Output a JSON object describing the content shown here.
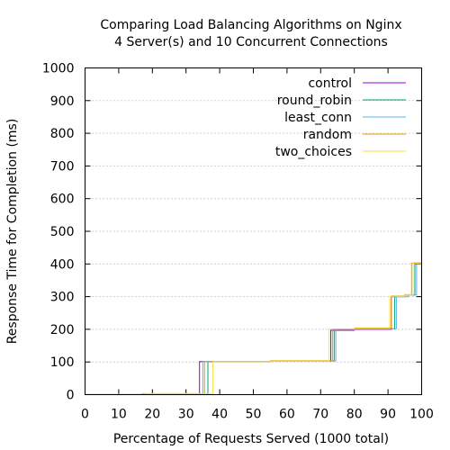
{
  "chart_data": {
    "type": "line",
    "title": "Comparing Load Balancing Algorithms on Nginx",
    "subtitle": "4 Server(s) and 10 Concurrent Connections",
    "xlabel": "Percentage of Requests Served (1000 total)",
    "ylabel": "Response Time for Completion (ms)",
    "xlim": [
      0,
      100
    ],
    "ylim": [
      0,
      1000
    ],
    "xticks": [
      "0",
      "10",
      "20",
      "30",
      "40",
      "50",
      "60",
      "70",
      "80",
      "90",
      "100"
    ],
    "yticks": [
      "0",
      "100",
      "200",
      "300",
      "400",
      "500",
      "600",
      "700",
      "800",
      "900",
      "1000"
    ],
    "grid": "horizontal dotted",
    "legend_position": "top-right",
    "series": [
      {
        "name": "control",
        "color": "#9400d3",
        "points": [
          [
            0,
            1
          ],
          [
            34,
            1
          ],
          [
            34,
            101
          ],
          [
            55,
            101
          ],
          [
            55,
            103
          ],
          [
            73,
            103
          ],
          [
            73,
            197
          ],
          [
            80,
            197
          ],
          [
            80,
            200
          ],
          [
            91,
            200
          ],
          [
            91,
            300
          ],
          [
            95,
            300
          ],
          [
            95,
            305
          ],
          [
            98,
            305
          ],
          [
            98,
            400
          ],
          [
            100,
            400
          ],
          [
            100,
            1000
          ]
        ]
      },
      {
        "name": "round_robin",
        "color": "#009e73",
        "points": [
          [
            0,
            1
          ],
          [
            36.5,
            1
          ],
          [
            36.5,
            101
          ],
          [
            55,
            101
          ],
          [
            55,
            103
          ],
          [
            74,
            103
          ],
          [
            74,
            200
          ],
          [
            80,
            200
          ],
          [
            80,
            202
          ],
          [
            92,
            202
          ],
          [
            92,
            300
          ],
          [
            95,
            300
          ],
          [
            95,
            305
          ],
          [
            98,
            305
          ],
          [
            98,
            400
          ],
          [
            100,
            400
          ],
          [
            100,
            1000
          ]
        ]
      },
      {
        "name": "least_conn",
        "color": "#56b4e9",
        "points": [
          [
            0,
            1
          ],
          [
            35,
            1
          ],
          [
            35,
            101
          ],
          [
            55,
            101
          ],
          [
            55,
            103
          ],
          [
            74.5,
            103
          ],
          [
            74.5,
            200
          ],
          [
            80,
            200
          ],
          [
            80,
            202
          ],
          [
            92.5,
            202
          ],
          [
            92.5,
            300
          ],
          [
            96,
            300
          ],
          [
            96,
            305
          ],
          [
            98.5,
            305
          ],
          [
            98.5,
            400
          ],
          [
            100,
            400
          ],
          [
            100,
            1000
          ]
        ]
      },
      {
        "name": "random",
        "color": "#e69f00",
        "points": [
          [
            0,
            1
          ],
          [
            17,
            1
          ],
          [
            17,
            3
          ],
          [
            35.5,
            3
          ],
          [
            35.5,
            101
          ],
          [
            55,
            101
          ],
          [
            55,
            104
          ],
          [
            73.5,
            104
          ],
          [
            73.5,
            201
          ],
          [
            80,
            201
          ],
          [
            80,
            204
          ],
          [
            91,
            204
          ],
          [
            91,
            302
          ],
          [
            95,
            302
          ],
          [
            95,
            306
          ],
          [
            97,
            306
          ],
          [
            97,
            402
          ],
          [
            100,
            402
          ],
          [
            100,
            1000
          ]
        ]
      },
      {
        "name": "two_choices",
        "color": "#f0e442",
        "points": [
          [
            0,
            1
          ],
          [
            18,
            1
          ],
          [
            18,
            3
          ],
          [
            38,
            3
          ],
          [
            38,
            101
          ],
          [
            55,
            101
          ],
          [
            55,
            103
          ],
          [
            72.5,
            103
          ],
          [
            72.5,
            200
          ],
          [
            80,
            200
          ],
          [
            80,
            203
          ],
          [
            90.5,
            203
          ],
          [
            90.5,
            301
          ],
          [
            95,
            301
          ],
          [
            95,
            305
          ],
          [
            97.5,
            305
          ],
          [
            97.5,
            404
          ],
          [
            100,
            404
          ],
          [
            100,
            1000
          ]
        ]
      }
    ]
  }
}
